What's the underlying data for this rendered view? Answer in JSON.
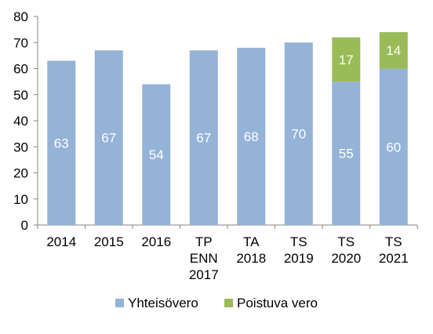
{
  "chart_data": {
    "type": "bar",
    "stacked": true,
    "categories": [
      [
        "2014"
      ],
      [
        "2015"
      ],
      [
        "2016"
      ],
      [
        "TP",
        "ENN",
        "2017"
      ],
      [
        "TA",
        "2018"
      ],
      [
        "TS",
        "2019"
      ],
      [
        "TS",
        "2020"
      ],
      [
        "TS",
        "2021"
      ]
    ],
    "series": [
      {
        "name": "Yhteisövero",
        "color": "#95b3d7",
        "values": [
          63,
          67,
          54,
          67,
          68,
          70,
          55,
          60
        ]
      },
      {
        "name": "Poistuva vero",
        "color": "#9bbb59",
        "values": [
          null,
          null,
          null,
          null,
          null,
          null,
          17,
          14
        ]
      }
    ],
    "ylim": [
      0,
      80
    ],
    "yticks": [
      0,
      10,
      20,
      30,
      40,
      50,
      60,
      70,
      80
    ],
    "grid": false,
    "legend": "bottom",
    "title": "",
    "xlabel": "",
    "ylabel": ""
  }
}
